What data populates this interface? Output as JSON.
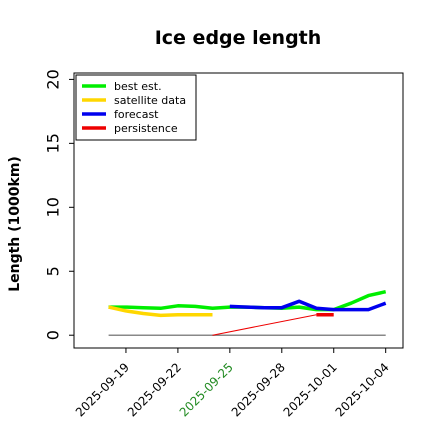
{
  "chart_data": {
    "type": "line",
    "title": "Ice edge length",
    "xlabel": "",
    "ylabel": "Length (1000km)",
    "xlim": [
      "2025-09-16",
      "2025-10-05"
    ],
    "ylim": [
      -1,
      20.5
    ],
    "y_ticks": [
      0,
      5,
      10,
      15,
      20
    ],
    "x_ticks": [
      "2025-09-19",
      "2025-09-22",
      "2025-09-25",
      "2025-09-28",
      "2025-10-01",
      "2025-10-04"
    ],
    "highlight_tick": "2025-09-25",
    "highlight_color": "#228B22",
    "grid": false,
    "legend_position": "top-left",
    "series": [
      {
        "name": "best est.",
        "color": "#00ee00",
        "x": [
          "2025-09-18",
          "2025-09-19",
          "2025-09-20",
          "2025-09-21",
          "2025-09-22",
          "2025-09-23",
          "2025-09-24",
          "2025-09-25",
          "2025-09-26",
          "2025-09-27",
          "2025-09-28",
          "2025-09-29",
          "2025-09-30",
          "2025-10-01",
          "2025-10-02",
          "2025-10-03",
          "2025-10-04"
        ],
        "y": [
          2.2,
          2.2,
          2.15,
          2.1,
          2.3,
          2.25,
          2.1,
          2.2,
          2.2,
          2.15,
          2.1,
          2.2,
          2.0,
          2.0,
          2.5,
          3.1,
          3.4
        ]
      },
      {
        "name": "satellite data",
        "color": "#ffd700",
        "x": [
          "2025-09-18",
          "2025-09-19",
          "2025-09-20",
          "2025-09-21",
          "2025-09-22",
          "2025-09-23",
          "2025-09-24"
        ],
        "y": [
          2.2,
          1.9,
          1.7,
          1.55,
          1.6,
          1.6,
          1.6
        ]
      },
      {
        "name": "forecast",
        "color": "#0000ee",
        "x": [
          "2025-09-25",
          "2025-09-26",
          "2025-09-27",
          "2025-09-28",
          "2025-09-29",
          "2025-09-30",
          "2025-10-01",
          "2025-10-02",
          "2025-10-03",
          "2025-10-04"
        ],
        "y": [
          2.25,
          2.2,
          2.15,
          2.15,
          2.65,
          2.1,
          2.0,
          2.0,
          2.0,
          2.5
        ]
      },
      {
        "name": "persistence",
        "color": "#ee0000",
        "x": [
          "2025-09-30",
          "2025-10-01"
        ],
        "y": [
          1.6,
          1.6
        ]
      }
    ],
    "annotations": [
      {
        "kind": "baseline",
        "color": "#888888",
        "x": [
          "2025-09-18",
          "2025-10-04"
        ],
        "y": [
          0,
          0
        ]
      },
      {
        "kind": "connector",
        "color": "#ee0000",
        "x": [
          "2025-09-24",
          "2025-09-30"
        ],
        "y": [
          0,
          1.6
        ]
      }
    ]
  }
}
